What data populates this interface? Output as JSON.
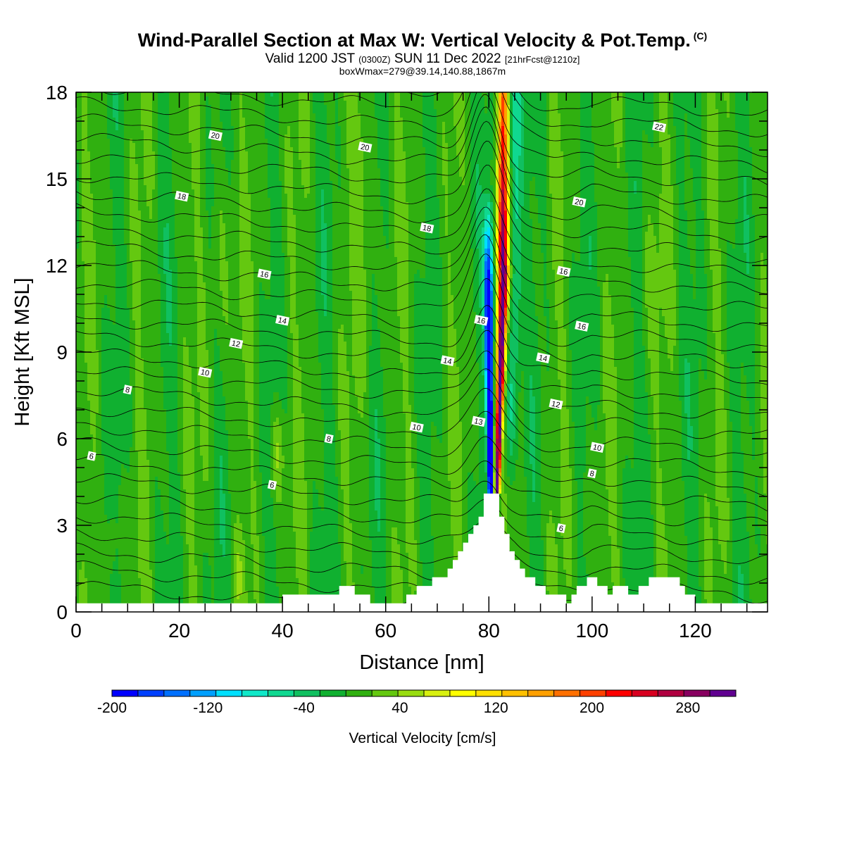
{
  "header": {
    "title": "Wind-Parallel Section at Max W: Vertical Velocity & Pot.Temp.",
    "copyright": "(C)",
    "valid_prefix": "Valid 1200 JST",
    "valid_utc": "(0300Z)",
    "valid_date": "SUN 11 Dec 2022",
    "forecast_info": "[21hrFcst@1210z]",
    "box_info": "boxWmax=279@39.14,140.88,1867m"
  },
  "chart_data": {
    "type": "heatmap",
    "xlabel": "Distance [nm]",
    "ylabel": "Height [Kft MSL]",
    "xlim": [
      0,
      134
    ],
    "ylim": [
      0,
      18
    ],
    "x_ticks": [
      "0",
      "20",
      "40",
      "60",
      "80",
      "100",
      "120"
    ],
    "y_ticks": [
      "0",
      "3",
      "6",
      "9",
      "12",
      "15",
      "18"
    ],
    "colorbar": {
      "label": "Vertical Velocity [cm/s]",
      "range": [
        -200,
        320
      ],
      "step": 20,
      "tick_labels": [
        "-200",
        "-120",
        "-40",
        "40",
        "120",
        "200",
        "280"
      ],
      "colors": [
        "#0000ff",
        "#0040ff",
        "#0070ff",
        "#00a0ff",
        "#00e0ff",
        "#10e8c8",
        "#10d890",
        "#10c060",
        "#10b030",
        "#30b010",
        "#64c810",
        "#98dc10",
        "#d8f010",
        "#ffff00",
        "#ffe000",
        "#ffc000",
        "#ffa000",
        "#ff7000",
        "#ff4000",
        "#ff0000",
        "#d80020",
        "#b00040",
        "#880060",
        "#600090"
      ]
    },
    "max_vertical_velocity": 279,
    "terrain_profile": [
      [
        0,
        0.3
      ],
      [
        40,
        0.3
      ],
      [
        40,
        0.6
      ],
      [
        51,
        0.6
      ],
      [
        51,
        0.9
      ],
      [
        54,
        0.9
      ],
      [
        54,
        0.6
      ],
      [
        57,
        0.6
      ],
      [
        57,
        0.3
      ],
      [
        64,
        0.3
      ],
      [
        64,
        0.6
      ],
      [
        66,
        0.6
      ],
      [
        66,
        0.9
      ],
      [
        69,
        0.9
      ],
      [
        69,
        1.2
      ],
      [
        72,
        1.2
      ],
      [
        72,
        1.5
      ],
      [
        73,
        1.5
      ],
      [
        73,
        1.8
      ],
      [
        74,
        1.8
      ],
      [
        74,
        2.1
      ],
      [
        75,
        2.1
      ],
      [
        75,
        2.4
      ],
      [
        76,
        2.4
      ],
      [
        76,
        2.7
      ],
      [
        77,
        2.7
      ],
      [
        77,
        3.0
      ],
      [
        78,
        3.0
      ],
      [
        78,
        3.3
      ],
      [
        79,
        3.3
      ],
      [
        79,
        4.1
      ],
      [
        82,
        4.1
      ],
      [
        82,
        3.3
      ],
      [
        83,
        3.3
      ],
      [
        83,
        2.7
      ],
      [
        84,
        2.7
      ],
      [
        84,
        2.1
      ],
      [
        85,
        2.1
      ],
      [
        85,
        1.8
      ],
      [
        86,
        1.8
      ],
      [
        86,
        1.5
      ],
      [
        87,
        1.5
      ],
      [
        87,
        1.2
      ],
      [
        89,
        1.2
      ],
      [
        89,
        0.9
      ],
      [
        91,
        0.9
      ],
      [
        91,
        0.6
      ],
      [
        95,
        0.6
      ],
      [
        95,
        0.3
      ],
      [
        96,
        0.3
      ],
      [
        96,
        0.6
      ],
      [
        97,
        0.6
      ],
      [
        97,
        0.9
      ],
      [
        99,
        0.9
      ],
      [
        99,
        1.2
      ],
      [
        101,
        1.2
      ],
      [
        101,
        0.9
      ],
      [
        103,
        0.9
      ],
      [
        103,
        0.6
      ],
      [
        104,
        0.6
      ],
      [
        104,
        0.9
      ],
      [
        107,
        0.9
      ],
      [
        107,
        0.6
      ],
      [
        109,
        0.6
      ],
      [
        109,
        0.9
      ],
      [
        111,
        0.9
      ],
      [
        111,
        1.2
      ],
      [
        117,
        1.2
      ],
      [
        117,
        0.9
      ],
      [
        118,
        0.9
      ],
      [
        118,
        0.6
      ],
      [
        120,
        0.6
      ],
      [
        120,
        0.3
      ],
      [
        134,
        0.3
      ]
    ],
    "contour_labels": [
      {
        "text": "20",
        "x": 27,
        "y": 16.5
      },
      {
        "text": "20",
        "x": 56,
        "y": 16.1
      },
      {
        "text": "22",
        "x": 113,
        "y": 16.8
      },
      {
        "text": "18",
        "x": 20.5,
        "y": 14.4
      },
      {
        "text": "18",
        "x": 68,
        "y": 13.3
      },
      {
        "text": "20",
        "x": 97.5,
        "y": 14.2
      },
      {
        "text": "16",
        "x": 36.5,
        "y": 11.7
      },
      {
        "text": "16",
        "x": 94.5,
        "y": 11.8
      },
      {
        "text": "14",
        "x": 40,
        "y": 10.1
      },
      {
        "text": "16",
        "x": 78.5,
        "y": 10.1
      },
      {
        "text": "16",
        "x": 98,
        "y": 9.9
      },
      {
        "text": "12",
        "x": 31,
        "y": 9.3
      },
      {
        "text": "14",
        "x": 72,
        "y": 8.7
      },
      {
        "text": "14",
        "x": 90.5,
        "y": 8.8
      },
      {
        "text": "10",
        "x": 25,
        "y": 8.3
      },
      {
        "text": "8",
        "x": 10,
        "y": 7.7
      },
      {
        "text": "12",
        "x": 93,
        "y": 7.2
      },
      {
        "text": "10",
        "x": 66,
        "y": 6.4
      },
      {
        "text": "13",
        "x": 78,
        "y": 6.6
      },
      {
        "text": "8",
        "x": 49,
        "y": 6.0
      },
      {
        "text": "10",
        "x": 101,
        "y": 5.7
      },
      {
        "text": "6",
        "x": 3,
        "y": 5.4
      },
      {
        "text": "8",
        "x": 100,
        "y": 4.8
      },
      {
        "text": "6",
        "x": 38,
        "y": 4.4
      },
      {
        "text": "6",
        "x": 94,
        "y": 2.9
      }
    ]
  }
}
